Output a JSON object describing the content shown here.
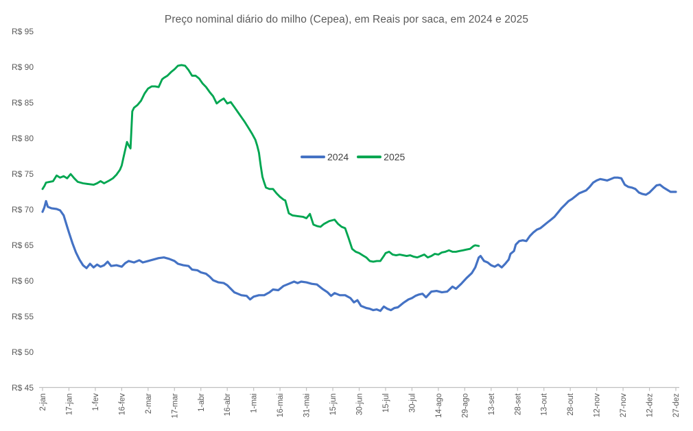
{
  "chart": {
    "title": "Preço nominal diário do milho (Cepea), em Reais por saca, em 2024 e 2025",
    "background_color": "#FFFFFF",
    "axis_line_color": "#BFBFBF",
    "axis_text_color": "#595959",
    "legend_text_color": "#404040"
  },
  "chart_data": {
    "type": "line",
    "title": "Preço nominal diário do milho (Cepea), em Reais por saca, em 2024 e 2025",
    "grid": false,
    "legend_position": "center-of-plot",
    "y_axis": {
      "min": 45,
      "max": 95,
      "step": 5,
      "tick_prefix": "R$ ",
      "tick_labels": [
        "R$ 45",
        "R$ 50",
        "R$ 55",
        "R$ 60",
        "R$ 65",
        "R$ 70",
        "R$ 75",
        "R$ 80",
        "R$ 85",
        "R$ 90",
        "R$ 95"
      ]
    },
    "x_axis": {
      "unit": "day-of-year (0 = 2-jan)",
      "range_days": [
        0,
        360
      ],
      "tick_interval_days": 15,
      "tick_labels": [
        "2-jan",
        "17-jan",
        "1-fev",
        "16-fev",
        "2-mar",
        "17-mar",
        "1-abr",
        "16-abr",
        "1-mai",
        "16-mai",
        "31-mai",
        "15-jun",
        "30-jun",
        "15-jul",
        "30-jul",
        "14-ago",
        "29-ago",
        "13-set",
        "28-set",
        "13-out",
        "28-out",
        "12-nov",
        "27-nov",
        "12-dez",
        "27-dez"
      ]
    },
    "series": [
      {
        "name": "2024",
        "color": "#4472C4",
        "stroke_width": 3.2,
        "points": [
          [
            0,
            69.7
          ],
          [
            1,
            70.3
          ],
          [
            2,
            71.2
          ],
          [
            3,
            70.4
          ],
          [
            5,
            70.2
          ],
          [
            8,
            70.1
          ],
          [
            10,
            69.9
          ],
          [
            12,
            69.2
          ],
          [
            14,
            67.6
          ],
          [
            15,
            66.8
          ],
          [
            17,
            65.3
          ],
          [
            19,
            64.0
          ],
          [
            21,
            63.0
          ],
          [
            23,
            62.2
          ],
          [
            25,
            61.8
          ],
          [
            27,
            62.4
          ],
          [
            29,
            61.9
          ],
          [
            31,
            62.3
          ],
          [
            33,
            62.0
          ],
          [
            35,
            62.2
          ],
          [
            37,
            62.7
          ],
          [
            39,
            62.1
          ],
          [
            42,
            62.2
          ],
          [
            45,
            62.0
          ],
          [
            47,
            62.5
          ],
          [
            49,
            62.8
          ],
          [
            52,
            62.6
          ],
          [
            55,
            62.9
          ],
          [
            57,
            62.6
          ],
          [
            60,
            62.8
          ],
          [
            63,
            63.0
          ],
          [
            66,
            63.2
          ],
          [
            69,
            63.3
          ],
          [
            72,
            63.1
          ],
          [
            75,
            62.8
          ],
          [
            77,
            62.4
          ],
          [
            80,
            62.2
          ],
          [
            83,
            62.1
          ],
          [
            85,
            61.6
          ],
          [
            88,
            61.5
          ],
          [
            90,
            61.2
          ],
          [
            93,
            61.0
          ],
          [
            95,
            60.6
          ],
          [
            97,
            60.1
          ],
          [
            100,
            59.8
          ],
          [
            103,
            59.7
          ],
          [
            105,
            59.4
          ],
          [
            107,
            58.9
          ],
          [
            109,
            58.4
          ],
          [
            111,
            58.2
          ],
          [
            113,
            58.0
          ],
          [
            116,
            57.9
          ],
          [
            118,
            57.4
          ],
          [
            120,
            57.8
          ],
          [
            123,
            58.0
          ],
          [
            126,
            58.0
          ],
          [
            129,
            58.4
          ],
          [
            131,
            58.8
          ],
          [
            134,
            58.7
          ],
          [
            137,
            59.3
          ],
          [
            140,
            59.6
          ],
          [
            143,
            59.9
          ],
          [
            145,
            59.7
          ],
          [
            147,
            59.9
          ],
          [
            150,
            59.8
          ],
          [
            153,
            59.6
          ],
          [
            156,
            59.5
          ],
          [
            159,
            58.9
          ],
          [
            162,
            58.4
          ],
          [
            164,
            57.9
          ],
          [
            166,
            58.3
          ],
          [
            169,
            58.0
          ],
          [
            172,
            58.0
          ],
          [
            175,
            57.6
          ],
          [
            177,
            57.0
          ],
          [
            179,
            57.3
          ],
          [
            181,
            56.5
          ],
          [
            184,
            56.2
          ],
          [
            186,
            56.1
          ],
          [
            188,
            55.9
          ],
          [
            190,
            56.0
          ],
          [
            192,
            55.8
          ],
          [
            194,
            56.4
          ],
          [
            196,
            56.1
          ],
          [
            198,
            55.9
          ],
          [
            200,
            56.2
          ],
          [
            202,
            56.3
          ],
          [
            205,
            56.9
          ],
          [
            208,
            57.4
          ],
          [
            210,
            57.6
          ],
          [
            212,
            57.9
          ],
          [
            214,
            58.1
          ],
          [
            216,
            58.2
          ],
          [
            218,
            57.7
          ],
          [
            221,
            58.5
          ],
          [
            224,
            58.6
          ],
          [
            227,
            58.4
          ],
          [
            230,
            58.5
          ],
          [
            233,
            59.2
          ],
          [
            235,
            58.9
          ],
          [
            238,
            59.6
          ],
          [
            241,
            60.4
          ],
          [
            244,
            61.1
          ],
          [
            246,
            61.9
          ],
          [
            248,
            63.3
          ],
          [
            249,
            63.5
          ],
          [
            251,
            62.8
          ],
          [
            253,
            62.6
          ],
          [
            255,
            62.2
          ],
          [
            257,
            62.0
          ],
          [
            259,
            62.3
          ],
          [
            261,
            61.9
          ],
          [
            263,
            62.4
          ],
          [
            265,
            63.0
          ],
          [
            266,
            63.8
          ],
          [
            268,
            64.2
          ],
          [
            269,
            65.1
          ],
          [
            271,
            65.6
          ],
          [
            273,
            65.7
          ],
          [
            275,
            65.6
          ],
          [
            277,
            66.3
          ],
          [
            279,
            66.8
          ],
          [
            281,
            67.2
          ],
          [
            283,
            67.4
          ],
          [
            285,
            67.8
          ],
          [
            287,
            68.2
          ],
          [
            289,
            68.6
          ],
          [
            291,
            69.0
          ],
          [
            293,
            69.6
          ],
          [
            295,
            70.2
          ],
          [
            297,
            70.7
          ],
          [
            299,
            71.2
          ],
          [
            301,
            71.5
          ],
          [
            303,
            71.9
          ],
          [
            305,
            72.3
          ],
          [
            307,
            72.5
          ],
          [
            309,
            72.7
          ],
          [
            311,
            73.2
          ],
          [
            313,
            73.8
          ],
          [
            315,
            74.1
          ],
          [
            317,
            74.3
          ],
          [
            319,
            74.2
          ],
          [
            321,
            74.1
          ],
          [
            323,
            74.3
          ],
          [
            325,
            74.5
          ],
          [
            327,
            74.5
          ],
          [
            329,
            74.4
          ],
          [
            331,
            73.5
          ],
          [
            333,
            73.2
          ],
          [
            335,
            73.1
          ],
          [
            337,
            72.9
          ],
          [
            339,
            72.4
          ],
          [
            341,
            72.2
          ],
          [
            343,
            72.1
          ],
          [
            345,
            72.4
          ],
          [
            347,
            72.9
          ],
          [
            349,
            73.4
          ],
          [
            351,
            73.5
          ],
          [
            353,
            73.1
          ],
          [
            355,
            72.8
          ],
          [
            357,
            72.5
          ],
          [
            360,
            72.5
          ]
        ]
      },
      {
        "name": "2025",
        "color": "#00A651",
        "stroke_width": 2.9,
        "points": [
          [
            0,
            72.9
          ],
          [
            1,
            73.3
          ],
          [
            2,
            73.8
          ],
          [
            4,
            73.9
          ],
          [
            6,
            74.0
          ],
          [
            8,
            74.8
          ],
          [
            10,
            74.5
          ],
          [
            12,
            74.7
          ],
          [
            14,
            74.4
          ],
          [
            16,
            75.0
          ],
          [
            18,
            74.4
          ],
          [
            20,
            73.9
          ],
          [
            23,
            73.7
          ],
          [
            26,
            73.6
          ],
          [
            29,
            73.5
          ],
          [
            31,
            73.7
          ],
          [
            33,
            74.0
          ],
          [
            35,
            73.7
          ],
          [
            38,
            74.1
          ],
          [
            40,
            74.4
          ],
          [
            42,
            74.9
          ],
          [
            44,
            75.6
          ],
          [
            45,
            76.2
          ],
          [
            46,
            77.3
          ],
          [
            47,
            78.4
          ],
          [
            48,
            79.5
          ],
          [
            49,
            79.0
          ],
          [
            50,
            78.6
          ],
          [
            51,
            83.8
          ],
          [
            52,
            84.3
          ],
          [
            54,
            84.7
          ],
          [
            56,
            85.3
          ],
          [
            58,
            86.3
          ],
          [
            60,
            87.0
          ],
          [
            62,
            87.3
          ],
          [
            64,
            87.3
          ],
          [
            66,
            87.2
          ],
          [
            68,
            88.3
          ],
          [
            69,
            88.5
          ],
          [
            71,
            88.8
          ],
          [
            73,
            89.3
          ],
          [
            75,
            89.7
          ],
          [
            77,
            90.2
          ],
          [
            79,
            90.3
          ],
          [
            81,
            90.2
          ],
          [
            83,
            89.6
          ],
          [
            85,
            88.8
          ],
          [
            87,
            88.8
          ],
          [
            89,
            88.4
          ],
          [
            91,
            87.7
          ],
          [
            93,
            87.2
          ],
          [
            95,
            86.5
          ],
          [
            97,
            85.9
          ],
          [
            99,
            84.9
          ],
          [
            101,
            85.3
          ],
          [
            103,
            85.6
          ],
          [
            105,
            84.9
          ],
          [
            107,
            85.1
          ],
          [
            109,
            84.4
          ],
          [
            111,
            83.7
          ],
          [
            113,
            83.0
          ],
          [
            115,
            82.3
          ],
          [
            117,
            81.5
          ],
          [
            119,
            80.7
          ],
          [
            121,
            79.8
          ],
          [
            122,
            79.0
          ],
          [
            123,
            78.0
          ],
          [
            124,
            76.2
          ],
          [
            125,
            74.6
          ],
          [
            126,
            73.8
          ],
          [
            127,
            73.1
          ],
          [
            129,
            72.9
          ],
          [
            131,
            72.9
          ],
          [
            133,
            72.3
          ],
          [
            135,
            71.8
          ],
          [
            137,
            71.4
          ],
          [
            138,
            71.3
          ],
          [
            140,
            69.5
          ],
          [
            142,
            69.2
          ],
          [
            145,
            69.1
          ],
          [
            148,
            69.0
          ],
          [
            150,
            68.8
          ],
          [
            152,
            69.4
          ],
          [
            154,
            67.9
          ],
          [
            156,
            67.7
          ],
          [
            158,
            67.6
          ],
          [
            160,
            68.0
          ],
          [
            163,
            68.4
          ],
          [
            166,
            68.6
          ],
          [
            168,
            68.0
          ],
          [
            170,
            67.6
          ],
          [
            172,
            67.4
          ],
          [
            174,
            66.0
          ],
          [
            176,
            64.5
          ],
          [
            178,
            64.1
          ],
          [
            180,
            63.9
          ],
          [
            182,
            63.6
          ],
          [
            184,
            63.3
          ],
          [
            186,
            62.8
          ],
          [
            188,
            62.7
          ],
          [
            190,
            62.8
          ],
          [
            192,
            62.8
          ],
          [
            194,
            63.5
          ],
          [
            195,
            63.9
          ],
          [
            197,
            64.1
          ],
          [
            199,
            63.7
          ],
          [
            201,
            63.6
          ],
          [
            203,
            63.7
          ],
          [
            205,
            63.6
          ],
          [
            207,
            63.5
          ],
          [
            209,
            63.6
          ],
          [
            211,
            63.4
          ],
          [
            213,
            63.3
          ],
          [
            215,
            63.5
          ],
          [
            217,
            63.7
          ],
          [
            219,
            63.3
          ],
          [
            221,
            63.5
          ],
          [
            223,
            63.8
          ],
          [
            225,
            63.7
          ],
          [
            227,
            64.0
          ],
          [
            229,
            64.1
          ],
          [
            231,
            64.3
          ],
          [
            233,
            64.1
          ],
          [
            235,
            64.1
          ],
          [
            237,
            64.2
          ],
          [
            239,
            64.3
          ],
          [
            241,
            64.4
          ],
          [
            243,
            64.5
          ],
          [
            245,
            64.9
          ],
          [
            246,
            65.0
          ],
          [
            248,
            64.9
          ]
        ]
      }
    ]
  },
  "legend": {
    "entries": [
      {
        "label": "2024",
        "color": "#4472C4"
      },
      {
        "label": "2025",
        "color": "#00A651"
      }
    ]
  }
}
